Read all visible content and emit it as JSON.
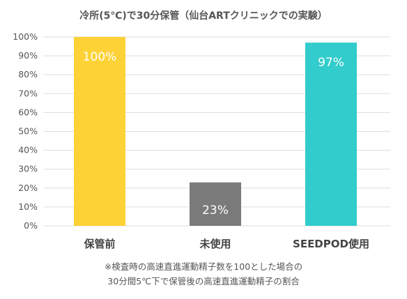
{
  "title": "冷所(5℃)で30分保管（仙台ARTクリニックでの実験）",
  "chart_data": {
    "type": "bar",
    "categories": [
      "保管前",
      "未使用",
      "SEEDPOD使用"
    ],
    "values": [
      100,
      23,
      97
    ],
    "data_labels": [
      "100%",
      "23%",
      "97%"
    ],
    "colors": [
      "#FDD236",
      "#7A7A7A",
      "#32CCCC"
    ],
    "ylim": [
      0,
      100
    ],
    "yticks": [
      "0%",
      "10%",
      "20%",
      "30%",
      "40%",
      "50%",
      "60%",
      "70%",
      "80%",
      "90%",
      "100%"
    ],
    "grid": true,
    "title": "冷所(5℃)で30分保管（仙台ARTクリニックでの実験）",
    "xlabel": "",
    "ylabel": ""
  },
  "note_lines": [
    "※検査時の高速直進運動精子数を100とした場合の",
    "30分間5℃下で保管後の高速直進運動精子の割合"
  ]
}
